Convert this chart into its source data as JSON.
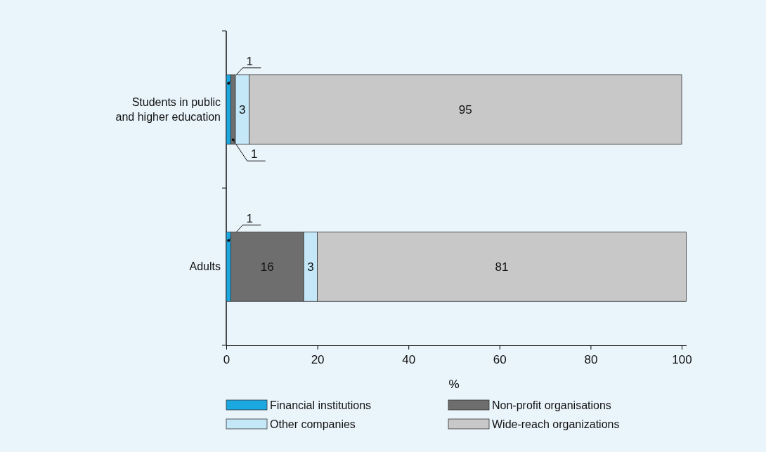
{
  "chart_data": {
    "type": "bar",
    "orientation": "horizontal",
    "stacked": true,
    "xlabel": "%",
    "categories": [
      "Students in public\nand higher education",
      "Adults"
    ],
    "series": [
      {
        "name": "Financial institutions",
        "color": "#1ba8e0",
        "values": [
          1,
          1
        ]
      },
      {
        "name": "Non-profit organisations",
        "color": "#6e6e6e",
        "values": [
          1,
          16
        ]
      },
      {
        "name": "Other companies",
        "color": "#c4e8f8",
        "values": [
          3,
          3
        ]
      },
      {
        "name": "Wide-reach organizations",
        "color": "#c8c8c8",
        "values": [
          95,
          81
        ]
      }
    ],
    "xlim": [
      0,
      101
    ],
    "xticks": [
      0,
      20,
      40,
      60,
      80,
      100
    ],
    "data_labels": true,
    "legend": "bottom",
    "grid": false
  }
}
